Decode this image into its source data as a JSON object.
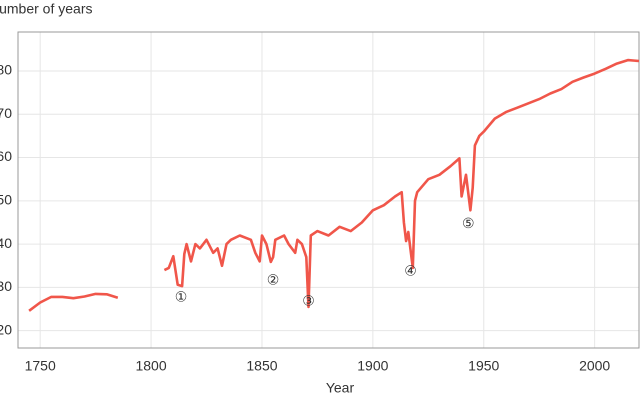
{
  "chart_data": {
    "type": "line",
    "title": "Number of years",
    "xlabel": "Year",
    "xlim": [
      1740,
      2020
    ],
    "ylim": [
      16,
      89
    ],
    "xticks": [
      1750,
      1800,
      1850,
      1900,
      1950,
      2000
    ],
    "yticks": [
      20,
      30,
      40,
      50,
      60,
      70,
      80
    ],
    "grid": true,
    "series": [
      {
        "color": "#f0564a",
        "x": [
          1745,
          1750,
          1755,
          1760,
          1765,
          1770,
          1775,
          1780,
          1785,
          1795,
          1806,
          1808,
          1810,
          1812,
          1814,
          1815,
          1816,
          1818,
          1820,
          1822,
          1825,
          1828,
          1830,
          1832,
          1834,
          1836,
          1840,
          1845,
          1847,
          1849,
          1850,
          1852,
          1854,
          1855,
          1856,
          1860,
          1862,
          1865,
          1866,
          1868,
          1870,
          1871,
          1872,
          1875,
          1880,
          1885,
          1890,
          1895,
          1900,
          1905,
          1910,
          1913,
          1914,
          1915,
          1916,
          1918,
          1919,
          1920,
          1925,
          1930,
          1935,
          1939,
          1940,
          1942,
          1944,
          1945,
          1946,
          1948,
          1950,
          1955,
          1960,
          1965,
          1970,
          1975,
          1980,
          1985,
          1990,
          1995,
          2000,
          2005,
          2010,
          2015,
          2020
        ],
        "values": [
          24.6,
          26.5,
          27.8,
          27.8,
          27.5,
          27.9,
          28.5,
          28.4,
          27.6,
          null,
          34.0,
          34.5,
          37.2,
          30.6,
          30.3,
          37.7,
          40,
          36,
          40,
          39,
          41,
          38,
          39,
          35,
          40,
          41,
          42,
          41,
          38,
          36,
          42,
          40,
          35.9,
          37,
          41,
          42,
          40,
          38,
          41,
          40,
          37,
          25.5,
          42,
          43,
          42,
          44,
          43,
          45,
          47.8,
          49,
          51,
          52,
          45,
          40.7,
          42.8,
          34.5,
          50,
          52,
          55,
          56,
          58,
          59.8,
          51,
          56,
          47.8,
          53,
          62.8,
          65,
          66,
          69,
          70.5,
          71.5,
          72.5,
          73.5,
          74.8,
          75.8,
          77.5,
          78.5,
          79.4,
          80.5,
          81.7,
          82.5,
          82.3
        ]
      }
    ],
    "annotations": [
      {
        "label": "①",
        "x": 1813.5,
        "y": 27.6
      },
      {
        "label": "②",
        "x": 1855,
        "y": 31.5
      },
      {
        "label": "③",
        "x": 1871,
        "y": 26.7
      },
      {
        "label": "④",
        "x": 1917,
        "y": 33.6
      },
      {
        "label": "⑤",
        "x": 1943,
        "y": 44.6
      }
    ]
  }
}
